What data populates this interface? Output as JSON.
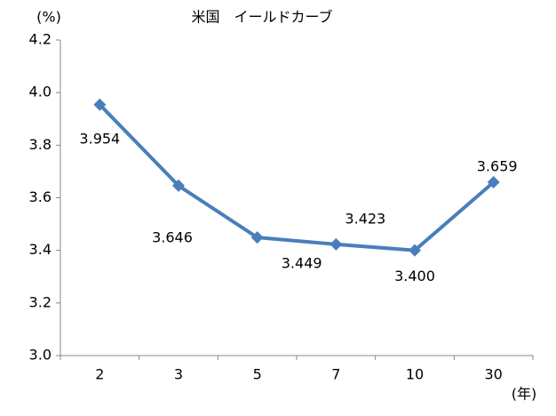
{
  "chart_data": {
    "type": "line",
    "title": "米国　イールドカーブ",
    "y_label": "(%)",
    "x_label": "(年)",
    "categories": [
      "2",
      "3",
      "5",
      "7",
      "10",
      "30"
    ],
    "values": [
      3.954,
      3.646,
      3.449,
      3.423,
      3.4,
      3.659
    ],
    "value_labels": [
      "3.954",
      "3.646",
      "3.449",
      "3.423",
      "3.400",
      "3.659"
    ],
    "color": "#4a7ebb",
    "marker": "diamond",
    "ylim": [
      3,
      4.2
    ],
    "yticks": [
      {
        "value": 3,
        "label": "3.0"
      },
      3.2,
      3.4,
      3.6,
      3.8,
      {
        "value": 4,
        "label": "4.0"
      },
      4.2
    ],
    "grid": false
  }
}
